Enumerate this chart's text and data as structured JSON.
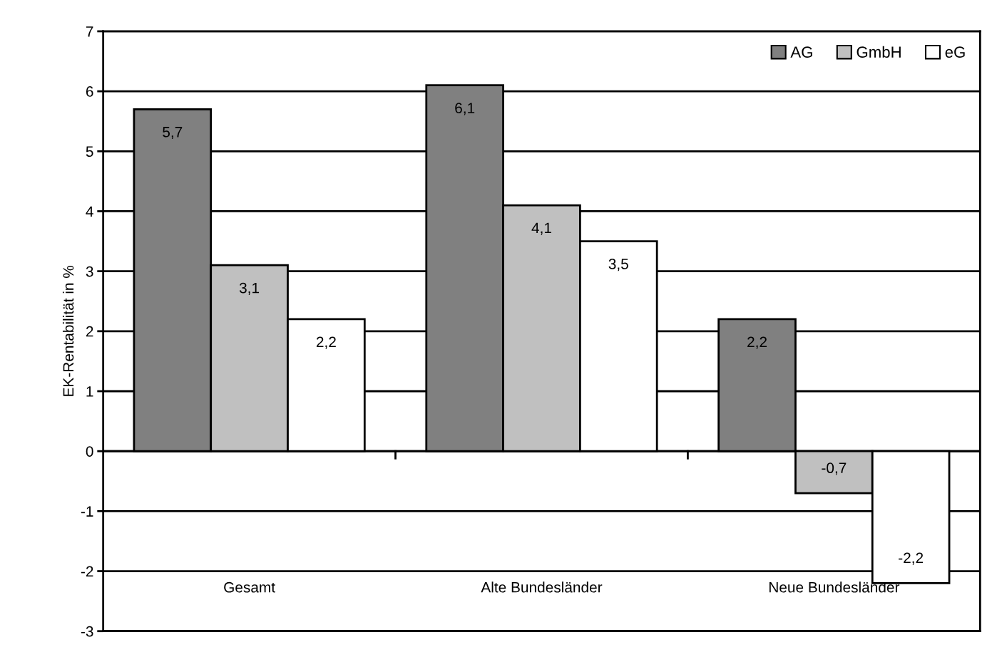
{
  "chart_data": {
    "type": "bar",
    "ylabel": "EK-Rentabilität in %",
    "categories": [
      "Gesamt",
      "Alte Bundesländer",
      "Neue Bundesländer"
    ],
    "series": [
      {
        "name": "AG",
        "color": "#808080",
        "values": [
          5.7,
          6.1,
          2.2
        ],
        "value_labels": [
          "5,7",
          "6,1",
          "2,2"
        ]
      },
      {
        "name": "GmbH",
        "color": "#c0c0c0",
        "values": [
          3.1,
          4.1,
          -0.7
        ],
        "value_labels": [
          "3,1",
          "4,1",
          "-0,7"
        ]
      },
      {
        "name": "eG",
        "color": "#ffffff",
        "values": [
          2.2,
          3.5,
          -2.2
        ],
        "value_labels": [
          "2,2",
          "3,5",
          "-2,2"
        ]
      }
    ],
    "ylim": [
      -3,
      7
    ],
    "yticks": [
      -3,
      -2,
      -1,
      0,
      1,
      2,
      3,
      4,
      5,
      6,
      7
    ],
    "grid": "y",
    "legend": "top right"
  }
}
